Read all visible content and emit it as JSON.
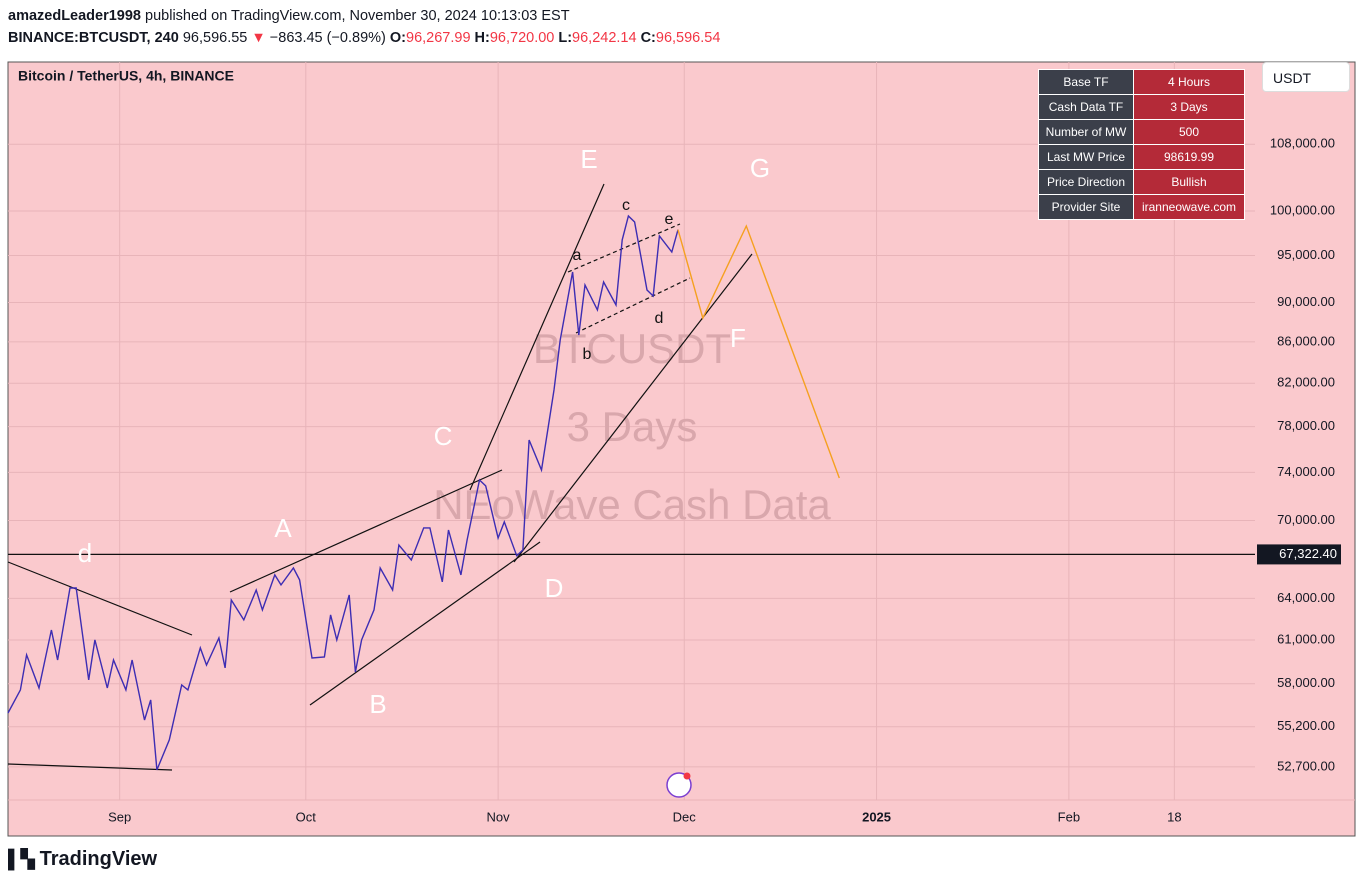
{
  "header": {
    "author": "amazedLeader1998",
    "published": "published on TradingView.com, November 30, 2024 10:13:03 EST",
    "symbol": "BINANCE:BTCUSDT, 240",
    "last": "96,596.55",
    "change": "−863.45 (−0.89%)",
    "ohlc": [
      {
        "label": "O:",
        "value": "96,267.99"
      },
      {
        "label": "H:",
        "value": "96,720.00"
      },
      {
        "label": "L:",
        "value": "96,242.14"
      },
      {
        "label": "C:",
        "value": "96,596.54"
      }
    ]
  },
  "currency": "USDT",
  "table": {
    "rows": [
      [
        "Base TF",
        "4 Hours"
      ],
      [
        "Cash Data TF",
        "3 Days"
      ],
      [
        "Number of MW",
        "500"
      ],
      [
        "Last MW Price",
        "98619.99"
      ],
      [
        "Price Direction",
        "Bullish"
      ],
      [
        "Provider Site",
        "iranneowave.com"
      ]
    ]
  },
  "watermark": [
    "BTCUSDT",
    "3 Days",
    "NEoWave Cash Data"
  ],
  "annotations": [
    "d",
    "A",
    "B",
    "C",
    "D",
    "E",
    "F",
    "G",
    "a",
    "b",
    "c",
    "d",
    "e"
  ],
  "footer": "TradingView",
  "chart_data": {
    "type": "line",
    "title": "Bitcoin / TetherUS, 4h, BINANCE",
    "log_scale": true,
    "grid": true,
    "xlim": [
      "2024-08-14",
      "2025-03-03"
    ],
    "xticks": [
      {
        "value": "2024-09-01",
        "label": "Sep"
      },
      {
        "value": "2024-10-01",
        "label": "Oct"
      },
      {
        "value": "2024-11-01",
        "label": "Nov"
      },
      {
        "value": "2024-12-01",
        "label": "Dec"
      },
      {
        "value": "2025-01-01",
        "label": "2025"
      },
      {
        "value": "2025-02-01",
        "label": "Feb"
      },
      {
        "value": "2025-02-18",
        "label": "18"
      }
    ],
    "ylim": [
      50730,
      118730
    ],
    "yticks": [
      {
        "value": 52700,
        "label": "52,700.00"
      },
      {
        "value": 55200,
        "label": "55,200.00"
      },
      {
        "value": 58000,
        "label": "58,000.00"
      },
      {
        "value": 61000,
        "label": "61,000.00"
      },
      {
        "value": 64000,
        "label": "64,000.00"
      },
      {
        "value": 70000,
        "label": "70,000.00"
      },
      {
        "value": 74000,
        "label": "74,000.00"
      },
      {
        "value": 78000,
        "label": "78,000.00"
      },
      {
        "value": 82000,
        "label": "82,000.00"
      },
      {
        "value": 86000,
        "label": "86,000.00"
      },
      {
        "value": 90000,
        "label": "90,000.00"
      },
      {
        "value": 95000,
        "label": "95,000.00"
      },
      {
        "value": 100000,
        "label": "100,000.00"
      },
      {
        "value": 108000,
        "label": "108,000.00"
      }
    ],
    "price_line": {
      "value": 67322.4,
      "label": "67,322.40"
    },
    "series": [
      {
        "color": "#3d2db3",
        "x": [
          "2024-08-14",
          "2024-08-16",
          "2024-08-17",
          "2024-08-19",
          "2024-08-21",
          "2024-08-22",
          "2024-08-24",
          "2024-08-25",
          "2024-08-27",
          "2024-08-28",
          "2024-08-30",
          "2024-08-31",
          "2024-09-02",
          "2024-09-03",
          "2024-09-05",
          "2024-09-06",
          "2024-09-07",
          "2024-09-09",
          "2024-09-11",
          "2024-09-12",
          "2024-09-14",
          "2024-09-15",
          "2024-09-17",
          "2024-09-18",
          "2024-09-19",
          "2024-09-21",
          "2024-09-23",
          "2024-09-24",
          "2024-09-26",
          "2024-09-27",
          "2024-09-29",
          "2024-09-30",
          "2024-10-02",
          "2024-10-04",
          "2024-10-05",
          "2024-10-06",
          "2024-10-08",
          "2024-10-09",
          "2024-10-10",
          "2024-10-12",
          "2024-10-13",
          "2024-10-15",
          "2024-10-16",
          "2024-10-18",
          "2024-10-20",
          "2024-10-21",
          "2024-10-23",
          "2024-10-24",
          "2024-10-26",
          "2024-10-27",
          "2024-10-29",
          "2024-10-30",
          "2024-11-01",
          "2024-11-02",
          "2024-11-04",
          "2024-11-05",
          "2024-11-06",
          "2024-11-08",
          "2024-11-10",
          "2024-11-11",
          "2024-11-13",
          "2024-11-14",
          "2024-11-15",
          "2024-11-17",
          "2024-11-18",
          "2024-11-20",
          "2024-11-21",
          "2024-11-22",
          "2024-11-23",
          "2024-11-25",
          "2024-11-26",
          "2024-11-27",
          "2024-11-29",
          "2024-11-30"
        ],
        "values": [
          56080,
          57590,
          59960,
          57720,
          61710,
          59610,
          64770,
          64770,
          58260,
          61010,
          57720,
          59610,
          57590,
          59610,
          55630,
          56930,
          52520,
          54370,
          57920,
          57590,
          60450,
          59270,
          61140,
          59070,
          63880,
          62430,
          64620,
          63150,
          65750,
          65000,
          66280,
          65370,
          59750,
          59820,
          62790,
          61010,
          64250,
          58790,
          61010,
          63150,
          66280,
          64620,
          68060,
          66890,
          69410,
          69410,
          65220,
          69240,
          65750,
          68450,
          73350,
          72850,
          68610,
          69890,
          67220,
          67670,
          76810,
          74200,
          81360,
          86190,
          93210,
          86690,
          91830,
          89230,
          92150,
          89740,
          96720,
          99430,
          98740,
          91300,
          90670,
          97170,
          95390,
          97870
        ]
      },
      {
        "color": "#f5a020",
        "x": [
          "2024-11-30",
          "2024-12-04",
          "2024-12-11",
          "2024-12-26"
        ],
        "values": [
          97870,
          88400,
          98290,
          73520
        ]
      }
    ]
  }
}
